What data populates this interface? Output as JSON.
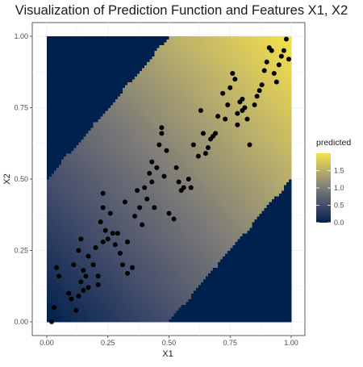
{
  "chart_data": {
    "type": "scatter",
    "title": "Visualization of Prediction Function and Features X1, X2",
    "xlabel": "X1",
    "ylabel": "X2",
    "xlim": [
      0,
      1
    ],
    "ylim": [
      0,
      1
    ],
    "xticks": [
      "0.00",
      "0.25",
      "0.50",
      "0.75",
      "1.00"
    ],
    "yticks": [
      "0.00",
      "0.25",
      "0.50",
      "0.75",
      "1.00"
    ],
    "grid": true,
    "legend": {
      "title": "predicted",
      "placement": "right",
      "ticks": [
        "0.0",
        "0.5",
        "1.0",
        "1.5"
      ],
      "tick_values": [
        0,
        0.5,
        1,
        1.5
      ],
      "range": [
        0,
        2
      ],
      "low_color": "#00204d",
      "high_color": "#f5e14a"
    },
    "surface": {
      "description_free_rule": "predicted = X1 + X2 inside band |X2 - X1| < 0.5, 0 outside",
      "band_halfwidth": 0.5,
      "outside_value": 0
    },
    "points": {
      "color": "#000000",
      "x": [
        0.02,
        0.03,
        0.04,
        0.05,
        0.09,
        0.1,
        0.11,
        0.12,
        0.13,
        0.13,
        0.14,
        0.14,
        0.15,
        0.15,
        0.16,
        0.17,
        0.17,
        0.19,
        0.2,
        0.21,
        0.21,
        0.22,
        0.23,
        0.23,
        0.23,
        0.24,
        0.25,
        0.26,
        0.27,
        0.28,
        0.29,
        0.3,
        0.31,
        0.32,
        0.33,
        0.33,
        0.35,
        0.36,
        0.37,
        0.38,
        0.39,
        0.4,
        0.41,
        0.42,
        0.43,
        0.43,
        0.44,
        0.45,
        0.46,
        0.47,
        0.47,
        0.48,
        0.49,
        0.5,
        0.52,
        0.53,
        0.54,
        0.55,
        0.56,
        0.58,
        0.59,
        0.6,
        0.62,
        0.63,
        0.64,
        0.65,
        0.66,
        0.67,
        0.68,
        0.69,
        0.7,
        0.72,
        0.73,
        0.74,
        0.75,
        0.76,
        0.77,
        0.78,
        0.78,
        0.79,
        0.8,
        0.8,
        0.81,
        0.82,
        0.83,
        0.85,
        0.86,
        0.87,
        0.88,
        0.89,
        0.9,
        0.91,
        0.92,
        0.93,
        0.94,
        0.95,
        0.96,
        0.97,
        0.98,
        0.99
      ],
      "y": [
        0.0,
        0.05,
        0.19,
        0.16,
        0.1,
        0.08,
        0.2,
        0.04,
        0.09,
        0.25,
        0.14,
        0.29,
        0.18,
        0.11,
        0.16,
        0.23,
        0.12,
        0.2,
        0.26,
        0.13,
        0.16,
        0.35,
        0.4,
        0.45,
        0.28,
        0.32,
        0.29,
        0.38,
        0.31,
        0.27,
        0.31,
        0.24,
        0.2,
        0.42,
        0.28,
        0.17,
        0.19,
        0.37,
        0.46,
        0.4,
        0.34,
        0.47,
        0.43,
        0.52,
        0.49,
        0.56,
        0.4,
        0.54,
        0.62,
        0.66,
        0.68,
        0.51,
        0.6,
        0.38,
        0.36,
        0.54,
        0.49,
        0.46,
        0.47,
        0.5,
        0.47,
        0.62,
        0.58,
        0.74,
        0.66,
        0.59,
        0.61,
        0.64,
        0.65,
        0.66,
        0.72,
        0.8,
        0.71,
        0.76,
        0.82,
        0.87,
        0.85,
        0.73,
        0.69,
        0.77,
        0.74,
        0.78,
        0.75,
        0.71,
        0.62,
        0.76,
        0.79,
        0.81,
        0.83,
        0.88,
        0.91,
        0.96,
        0.95,
        0.87,
        0.84,
        0.9,
        0.93,
        0.95,
        0.99,
        0.92
      ]
    }
  }
}
